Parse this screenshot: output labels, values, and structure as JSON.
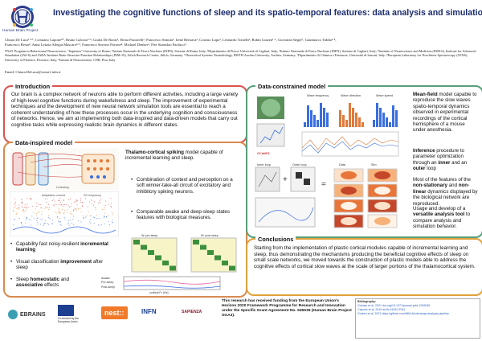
{
  "header": {
    "title": "Investigating the cognitive functions of sleep and its spatio-temporal features: data analysis and simulations",
    "logo_subtitle": "Human Brain Project",
    "authors_line1": "Chiara De Luca¹·²*, Cristiano Capone²*, Bruno Golosio³·⁴, Giulia De Bonis², Elena Pastorelli¹, Francesco Simula², Irene Bernava², Cosimo Lupo², Leonardo Tonielli², Robin Gutzen¹·⁶, Giovanni Stegel⁷, Gianmarco Tiddia³·⁴,",
    "authors_line2": "Francesco Resta⁸, Anna Letizia Allegra Mascaro⁸·⁹, Francesco Saverio Pavone⁸, Michael Denker⁵, Pier Stanislao Paolucci²",
    "affiliations": "¹Ph.D. Program in Behavioural Neuroscience, \"Sapienza\" University of Rome; ²Istituto Nazionale di Fisica Nucleare (INFN), Sezione di Roma, Italy; ³Dipartimento di Fisica, Università di Cagliari, Italy; ⁴Istituto Nazionale di Fisica Nucleare (INFN), Sezione di Cagliari, Italy; ⁵Institute of Neuroscience and Medicine (INM-6), Institute for Advanced Simulation (IAS-6) and JARA-Institute Brain Structure-Function Relationships (INM-10), Jülich Research Centre, Jülich, Germany; ⁶Theoretical Systems Neurobiology, RWTH Aachen University, Aachen, Germany; ⁷Dipartimento di Chimica e Farmacia, Università di Sassari, Italy; ⁸European Laboratory for Non-linear Spectroscopy (LENS), University of Florence, Florence, Italy; ⁹Istituto di Neuroscienze, CNR, Pisa, Italy",
    "email": "Email: Chiara.DeLuca@roma1.infn.it"
  },
  "introduction": {
    "title": "Introduction",
    "text": "Our brain is a complex network of neurons able to perform different activities, including a large variety of high-level cognitive functions during wakefulness and sleep. The improvement of experimental techniques and the development of new neural network simulation tools are essential to reach a coherent understanding of how these processes occur in the underlying cognition and consciousness of networks. Hence, we aim at implementing both data-inspired and data-driven models that carry out cognitive tasks while expressing realistic brain dynamics in different states."
  },
  "data_inspired": {
    "title": "Data-inspired model",
    "headline_bold": "Thalamo-cortical spiking",
    "headline_rest": " model capable of incremental learning and sleep.",
    "bullets": [
      "Combination of context and perception on a soft winner-take-all circuit of excitatory and inhibitory spiking neurons.",
      "Comparable awake and deep-sleep states features with biological measures."
    ],
    "left_bullets": [
      {
        "pre": "Capability fast noisy-resilient ",
        "bold": "incremental learning",
        "post": ""
      },
      {
        "pre": "Visual classification ",
        "bold": "improvement",
        "post": " after sleep"
      },
      {
        "pre": "Sleep ",
        "bold": "homeostatic",
        "post": " and "
      },
      {
        "pre": "",
        "bold": "associative",
        "post": " effects"
      }
    ],
    "fig_labels": {
      "learning": "Learning",
      "adaptation": "Adaptation current",
      "so": "SO frequency",
      "awake": "Awake",
      "pre_sleep": "Pre-sleep",
      "post_sleep": "Post-sleep",
      "w_pre": "W: pre-sleep",
      "w_post": "W: post sleep",
      "cortical_fr": "cortical Fr (Hz)"
    }
  },
  "data_constrained": {
    "title": "Data-constrained model",
    "p1_bold": "Mean-field",
    "p1_rest": " model capable to reproduce the slow waves spatio-temporal dynamics observed in experimental recordings of the cortical hemisphere of a mouse under anesthesia.",
    "p2_bold": "Inference",
    "p2_mid": " procedure to parameter optimization through an ",
    "p2_b2": "inner",
    "p2_mid2": " and an ",
    "p2_b3": "outer",
    "p2_end": " loop",
    "p3_pre": "Most of the features of the ",
    "p3_b1": "non-stationary",
    "p3_mid": " and ",
    "p3_b2": "non-linear",
    "p3_end": " dynamics displayed by the biological network are reproduced.",
    "p4_pre": "Usage and develop of a ",
    "p4_b": "versatile analysis tool",
    "p4_end": " to compare analysis and simulation behavior.",
    "fig_labels": {
      "wave_freq": "Wave frequency",
      "wave_dir": "Wave direction",
      "wave_speed": "Wave speed",
      "gcamp": "GCaMP6",
      "inner": "Inner loop",
      "outer": "Outer loop",
      "data": "Data",
      "sim": "Sim"
    }
  },
  "conclusions": {
    "title": "Conclusions",
    "text": "Starting from the implementation of plastic cortical modules capable of incremental learning and sleep, thus demonstrating the mechanisms producing the beneficial cognitive effects of sleep on small scale networks, we moved towards the construction of plastic models able to address the cognitive effects of cortical slow waves at the scale of larger portions of the thalamocortical system."
  },
  "footer": {
    "logos": [
      "EBRAINS",
      "Co-funded by the European Union",
      "nest::",
      "INFN",
      "SAPIENZA"
    ],
    "funding": "This research has received funding from the European Union's Horizon 2020 Framework Programme for Research and Innovation under the Specific Grant Agreement No. 945539 (Human Brain Project SGA3).",
    "bibliography_title": "Bibliography:",
    "bibliography": [
      "Golosio et al. 2021 doi.org/10.1371/journal.pcbi.1009045",
      "Capone et al. 2019 arXiv:2106.07041",
      "Gutzen et al. 2021 https://github.com/INM-6/cobrawap-analysis-pipeline"
    ]
  },
  "colors": {
    "title": "#1a2b6d",
    "intro_border": "#d9534f",
    "data_inspired_border": "#d98a4f",
    "data_constrained_border": "#5a9f7a",
    "conclusions_border": "#e0a23c"
  }
}
